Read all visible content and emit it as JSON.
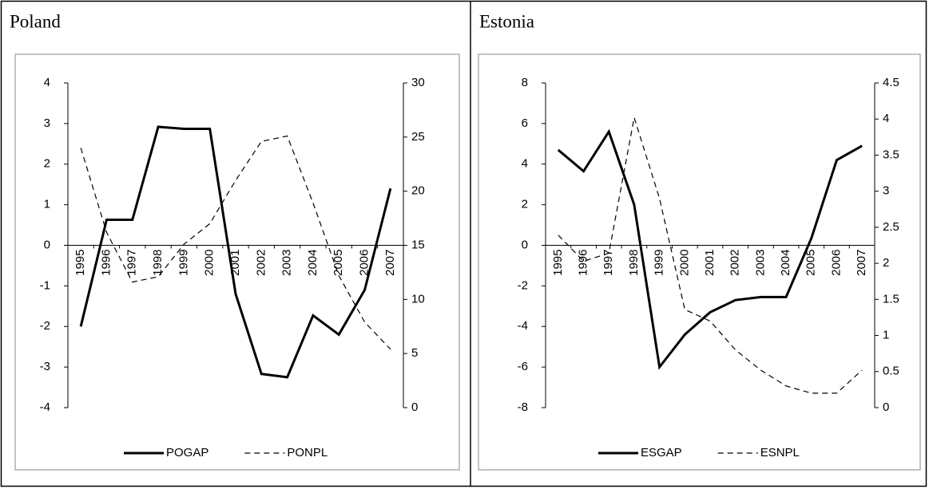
{
  "chart_data": [
    {
      "type": "line",
      "title": "Poland",
      "categories": [
        "1995",
        "1996",
        "1997",
        "1998",
        "1999",
        "2000",
        "2001",
        "2002",
        "2003",
        "2004",
        "2005",
        "2006",
        "2007"
      ],
      "ylim": [
        -4,
        4
      ],
      "yticks": [
        -4,
        -3,
        -2,
        -1,
        0,
        1,
        2,
        3,
        4
      ],
      "y2lim": [
        0,
        30
      ],
      "y2ticks": [
        0,
        5,
        10,
        15,
        20,
        25,
        30
      ],
      "series": [
        {
          "name": "POGAP",
          "color": "#000000",
          "style": "solid",
          "values": [
            -2.0,
            0.63,
            0.63,
            2.92,
            2.87,
            2.87,
            -1.2,
            -3.17,
            -3.25,
            -1.73,
            -2.2,
            -1.1,
            1.4
          ]
        },
        {
          "name": "PONPL",
          "color": "#000000",
          "style": "dashed",
          "axis": "y2",
          "values": [
            24,
            16.2,
            11.6,
            12.1,
            15.1,
            17,
            21,
            24.6,
            25.1,
            18.9,
            12.2,
            7.9,
            5.4
          ]
        }
      ]
    },
    {
      "type": "line",
      "title": "Estonia",
      "categories": [
        "1995",
        "1996",
        "1997",
        "1998",
        "1999",
        "2000",
        "2001",
        "2002",
        "2003",
        "2004",
        "2005",
        "2006",
        "2007"
      ],
      "ylim": [
        -8,
        8
      ],
      "yticks": [
        -8,
        -6,
        -4,
        -2,
        0,
        2,
        4,
        6,
        8
      ],
      "y2lim": [
        0,
        4.5
      ],
      "y2ticks": [
        0,
        0.5,
        1,
        1.5,
        2,
        2.5,
        3,
        3.5,
        4,
        4.5
      ],
      "series": [
        {
          "name": "ESGAP",
          "color": "#000000",
          "style": "solid",
          "values": [
            4.7,
            3.65,
            5.6,
            2.0,
            -6.0,
            -4.4,
            -3.3,
            -2.7,
            -2.55,
            -2.55,
            0.35,
            4.2,
            4.9
          ]
        },
        {
          "name": "ESNPL",
          "color": "#000000",
          "style": "dashed",
          "axis": "y2",
          "values": [
            2.39,
            2.03,
            2.14,
            4.02,
            2.9,
            1.36,
            1.2,
            0.8,
            0.52,
            0.3,
            0.2,
            0.2,
            0.52
          ]
        }
      ]
    }
  ]
}
